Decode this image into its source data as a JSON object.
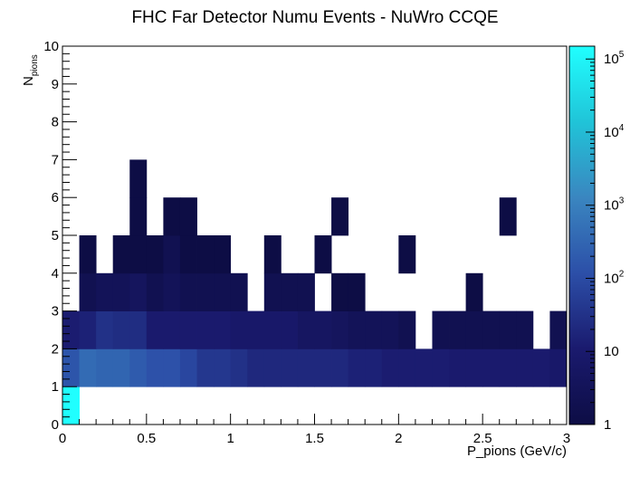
{
  "chart_data": {
    "type": "heatmap",
    "title": "FHC Far Detector Numu Events - NuWro CCQE",
    "xlabel": "P_pions (GeV/c)",
    "ylabel": "N_pions",
    "ylabel_main": "N",
    "ylabel_sub": "pions",
    "xlim": [
      0,
      3
    ],
    "ylim": [
      0,
      10
    ],
    "x_ticks": [
      "0",
      "0.5",
      "1",
      "1.5",
      "2",
      "2.5",
      "3"
    ],
    "y_ticks": [
      "0",
      "1",
      "2",
      "3",
      "4",
      "5",
      "6",
      "7",
      "8",
      "9",
      "10"
    ],
    "x_bin_width": 0.1,
    "colorbar": {
      "scale": "log",
      "range": [
        1,
        150000
      ],
      "labels": [
        {
          "base": "1",
          "exp": "",
          "value": 1
        },
        {
          "base": "10",
          "exp": "",
          "value": 10
        },
        {
          "base": "10",
          "exp": "2",
          "value": 100
        },
        {
          "base": "10",
          "exp": "3",
          "value": 1000
        },
        {
          "base": "10",
          "exp": "4",
          "value": 10000
        },
        {
          "base": "10",
          "exp": "5",
          "value": 100000
        }
      ],
      "palette": [
        "#0d0d45",
        "#1a1a6e",
        "#2c4fa8",
        "#3a86c0",
        "#20c4d8",
        "#20ffff"
      ]
    },
    "rows": [
      {
        "n_pions": 0,
        "values": [
          150000,
          0,
          0,
          0,
          0,
          0,
          0,
          0,
          0,
          0,
          0,
          0,
          0,
          0,
          0,
          0,
          0,
          0,
          0,
          0,
          0,
          0,
          0,
          0,
          0,
          0,
          0,
          0,
          0,
          0
        ]
      },
      {
        "n_pions": 1,
        "values": [
          150,
          400,
          300,
          300,
          200,
          130,
          130,
          80,
          40,
          40,
          30,
          20,
          20,
          20,
          20,
          20,
          20,
          15,
          15,
          12,
          12,
          12,
          12,
          10,
          10,
          10,
          10,
          10,
          10,
          8
        ]
      },
      {
        "n_pions": 2,
        "values": [
          12,
          15,
          30,
          25,
          25,
          10,
          10,
          10,
          10,
          10,
          8,
          8,
          8,
          8,
          5,
          5,
          4,
          3,
          3,
          3,
          2,
          0,
          2,
          2,
          2,
          2,
          2,
          2,
          0,
          2
        ]
      },
      {
        "n_pions": 3,
        "values": [
          0,
          2,
          3,
          3,
          4,
          2,
          3,
          2,
          2,
          2,
          2,
          0,
          2,
          2,
          2,
          0,
          1,
          1,
          0,
          0,
          0,
          0,
          0,
          0,
          1,
          0,
          0,
          0,
          0,
          0
        ]
      },
      {
        "n_pions": 4,
        "values": [
          0,
          1,
          0,
          1,
          1,
          1,
          2,
          1,
          1,
          1,
          0,
          0,
          1,
          0,
          0,
          1,
          0,
          0,
          0,
          0,
          1,
          0,
          0,
          0,
          0,
          0,
          0,
          0,
          0,
          0
        ]
      },
      {
        "n_pions": 5,
        "values": [
          0,
          0,
          0,
          0,
          1,
          0,
          1,
          1,
          0,
          0,
          0,
          0,
          0,
          0,
          0,
          0,
          1,
          0,
          0,
          0,
          0,
          0,
          0,
          0,
          0,
          0,
          1,
          0,
          0,
          0
        ]
      },
      {
        "n_pions": 6,
        "values": [
          0,
          0,
          0,
          0,
          1,
          0,
          0,
          0,
          0,
          0,
          0,
          0,
          0,
          0,
          0,
          0,
          0,
          0,
          0,
          0,
          0,
          0,
          0,
          0,
          0,
          0,
          0,
          0,
          0,
          0
        ]
      }
    ]
  }
}
